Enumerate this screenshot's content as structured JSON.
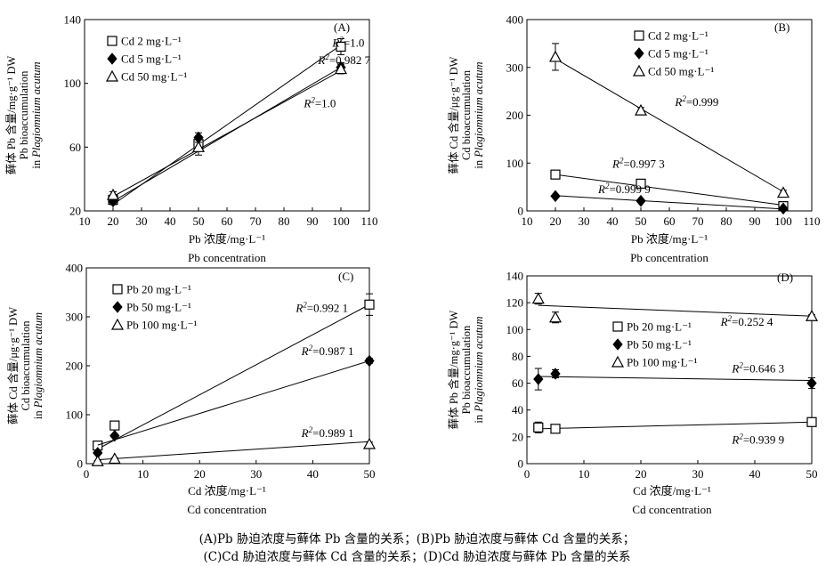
{
  "chart_data": [
    {
      "type": "line",
      "panel_label": "(A)",
      "xlabel": "Pb 浓度/mg·L⁻¹",
      "xlabel_en": "Pb concentration",
      "ylabel_cn": "藓体 Pb 含量/mg·g⁻¹ DW",
      "ylabel_en1": "Pb bioaccumulation",
      "ylabel_en2": "in Plagiomnium acutum",
      "xlim": [
        10,
        110
      ],
      "ylim": [
        20,
        140
      ],
      "xticks": [
        10,
        20,
        30,
        40,
        50,
        60,
        70,
        80,
        90,
        100,
        110
      ],
      "yticks": [
        20,
        60,
        100,
        140
      ],
      "legend_position": "top-left",
      "series": [
        {
          "name": "Cd 2 mg·L⁻¹",
          "marker": "square-open",
          "x": [
            20,
            50,
            100
          ],
          "y": [
            27,
            62,
            123
          ],
          "err": [
            3,
            4,
            5
          ],
          "fit": [
            [
              20,
              24
            ],
            [
              100,
              124
            ]
          ]
        },
        {
          "name": "Cd 5 mg·L⁻¹",
          "marker": "diamond-filled",
          "x": [
            20,
            50,
            100
          ],
          "y": [
            26,
            66,
            110
          ],
          "err": [
            2,
            3,
            3
          ],
          "fit": [
            [
              20,
              26
            ],
            [
              100,
              110
            ]
          ]
        },
        {
          "name": "Cd 50 mg·L⁻¹",
          "marker": "triangle-open",
          "x": [
            20,
            50,
            100
          ],
          "y": [
            30,
            60,
            109
          ],
          "err": [
            2,
            5,
            3
          ],
          "fit": [
            [
              20,
              29
            ],
            [
              100,
              108
            ]
          ]
        }
      ],
      "annotations": [
        {
          "text": "=1.0",
          "at": [
            97,
            123
          ]
        },
        {
          "text": "=0.982 7",
          "at": [
            92,
            112
          ]
        },
        {
          "text": "=1.0",
          "at": [
            87,
            85
          ]
        }
      ]
    },
    {
      "type": "line",
      "panel_label": "(B)",
      "xlabel": "Pb 浓度/mg·L⁻¹",
      "xlabel_en": "Pb concentration",
      "ylabel_cn": "藓体 Cd 含量/μg·g⁻¹ DW",
      "ylabel_en1": "Cd bioaccumulation",
      "ylabel_en2": "in Plagiomnium acutum",
      "xlim": [
        10,
        110
      ],
      "ylim": [
        0,
        400
      ],
      "xticks": [
        10,
        20,
        30,
        40,
        50,
        60,
        70,
        80,
        90,
        100,
        110
      ],
      "yticks": [
        0,
        100,
        200,
        300,
        400
      ],
      "legend_position": "top-right",
      "series": [
        {
          "name": "Cd 2 mg·L⁻¹",
          "marker": "square-open",
          "x": [
            20,
            50,
            100
          ],
          "y": [
            76,
            57,
            10
          ],
          "err": [
            4,
            3,
            2
          ],
          "fit": [
            [
              20,
              76
            ],
            [
              100,
              12
            ]
          ]
        },
        {
          "name": "Cd 5 mg·L⁻¹",
          "marker": "diamond-filled",
          "x": [
            20,
            50,
            100
          ],
          "y": [
            31,
            21,
            5
          ],
          "err": [
            3,
            3,
            1
          ],
          "fit": [
            [
              20,
              32
            ],
            [
              100,
              4
            ]
          ]
        },
        {
          "name": "Cd 50 mg·L⁻¹",
          "marker": "triangle-open",
          "x": [
            20,
            50,
            100
          ],
          "y": [
            322,
            210,
            38
          ],
          "err": [
            28,
            6,
            5
          ],
          "fit": [
            [
              20,
              318
            ],
            [
              100,
              40
            ]
          ]
        }
      ],
      "annotations": [
        {
          "text": "=0.999",
          "at": [
            62,
            220
          ]
        },
        {
          "text": "=0.997 3",
          "at": [
            40,
            90
          ]
        },
        {
          "text": "=0.999 9",
          "at": [
            35,
            37
          ]
        }
      ]
    },
    {
      "type": "line",
      "panel_label": "(C)",
      "xlabel": "Cd 浓度/mg·L⁻¹",
      "xlabel_en": "Cd concentration",
      "ylabel_cn": "藓体 Cd 含量/μg·g⁻¹ DW",
      "ylabel_en1": "Cd bioaccumulation",
      "ylabel_en2": "in Plagiomnium acutum",
      "xlim": [
        0,
        50
      ],
      "ylim": [
        0,
        400
      ],
      "xticks": [
        0,
        10,
        20,
        30,
        40,
        50
      ],
      "yticks": [
        0,
        100,
        200,
        300,
        400
      ],
      "legend_position": "top-left",
      "series": [
        {
          "name": "Pb 20 mg·L⁻¹",
          "marker": "square-open",
          "x": [
            2,
            5,
            50
          ],
          "y": [
            37,
            78,
            325
          ],
          "err": [
            5,
            5,
            22
          ],
          "fit": [
            [
              2,
              30
            ],
            [
              50,
              325
            ]
          ]
        },
        {
          "name": "Pb 50 mg·L⁻¹",
          "marker": "diamond-filled",
          "x": [
            2,
            5,
            50
          ],
          "y": [
            22,
            57,
            210
          ],
          "err": [
            3,
            3,
            5
          ],
          "fit": [
            [
              2,
              38
            ],
            [
              50,
              210
            ]
          ]
        },
        {
          "name": "Pb 100 mg·L⁻¹",
          "marker": "triangle-open",
          "x": [
            2,
            5,
            50
          ],
          "y": [
            5,
            10,
            40
          ],
          "err": [
            1,
            2,
            4
          ],
          "fit": [
            [
              2,
              8
            ],
            [
              50,
              45
            ]
          ]
        }
      ],
      "annotations": [
        {
          "text": "=0.992 1",
          "at": [
            37,
            310
          ]
        },
        {
          "text": "=0.987 1",
          "at": [
            38,
            222
          ]
        },
        {
          "text": "=0.989 1",
          "at": [
            38,
            55
          ]
        }
      ]
    },
    {
      "type": "line",
      "panel_label": "(D)",
      "xlabel": "Cd 浓度/mg·L⁻¹",
      "xlabel_en": "Cd concentration",
      "ylabel_cn": "藓体 Pb 含量/mg·g⁻¹ DW",
      "ylabel_en1": "Pb bioaccumulation",
      "ylabel_en2": "in Plagiomnium acutum",
      "xlim": [
        0,
        50
      ],
      "ylim": [
        0,
        140
      ],
      "xticks": [
        0,
        10,
        20,
        30,
        40,
        50
      ],
      "yticks": [
        0,
        20,
        40,
        60,
        80,
        100,
        120,
        140
      ],
      "legend_position": "center",
      "series": [
        {
          "name": "Pb 20 mg·L⁻¹",
          "marker": "square-open",
          "x": [
            2,
            5,
            50
          ],
          "y": [
            27,
            26,
            31
          ],
          "err": [
            4,
            2,
            1
          ],
          "fit": [
            [
              2,
              26
            ],
            [
              50,
              31
            ]
          ]
        },
        {
          "name": "Pb 50 mg·L⁻¹",
          "marker": "diamond-filled",
          "x": [
            2,
            5,
            50
          ],
          "y": [
            63,
            67,
            60
          ],
          "err": [
            8,
            3,
            4
          ],
          "fit": [
            [
              2,
              65
            ],
            [
              50,
              62
            ]
          ]
        },
        {
          "name": "Pb 100 mg·L⁻¹",
          "marker": "triangle-open",
          "x": [
            2,
            5,
            50
          ],
          "y": [
            123,
            109,
            110
          ],
          "err": [
            4,
            4,
            1
          ],
          "fit": [
            [
              2,
              118
            ],
            [
              50,
              110
            ]
          ]
        }
      ],
      "annotations": [
        {
          "text": "=0.252 4",
          "at": [
            34,
            103
          ]
        },
        {
          "text": "=0.646 3",
          "at": [
            36,
            68
          ]
        },
        {
          "text": "=0.939 9",
          "at": [
            36,
            15
          ]
        }
      ]
    }
  ],
  "captions": [
    "(A)Pb 胁迫浓度与藓体 Pb 含量的关系；(B)Pb 胁迫浓度与藓体 Cd 含量的关系；",
    "(C)Cd 胁迫浓度与藓体 Cd 含量的关系；(D)Cd 胁迫浓度与藓体 Pb 含量的关系"
  ]
}
